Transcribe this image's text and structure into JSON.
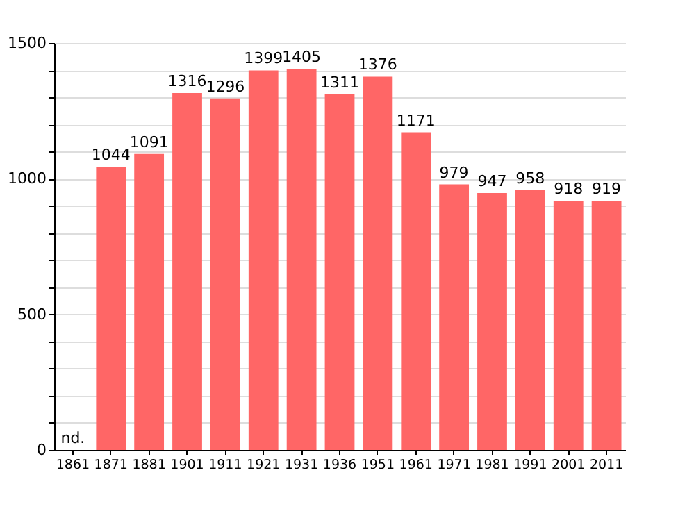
{
  "chart_data": {
    "type": "bar",
    "categories": [
      "1861",
      "1871",
      "1881",
      "1901",
      "1911",
      "1921",
      "1931",
      "1936",
      "1951",
      "1961",
      "1971",
      "1981",
      "1991",
      "2001",
      "2011"
    ],
    "values": [
      null,
      1044,
      1091,
      1316,
      1296,
      1399,
      1405,
      1311,
      1376,
      1171,
      979,
      947,
      958,
      918,
      919
    ],
    "value_labels": [
      "nd.",
      "1044",
      "1091",
      "1316",
      "1296",
      "1399",
      "1405",
      "1311",
      "1376",
      "1171",
      "979",
      "947",
      "958",
      "918",
      "919"
    ],
    "color": "#ff6666",
    "ylim": [
      0,
      1500
    ],
    "yticks": [
      0,
      {
        "value": 100,
        "label": null
      },
      {
        "value": 200,
        "label": null
      },
      {
        "value": 300,
        "label": null
      },
      {
        "value": 400,
        "label": null
      },
      500,
      {
        "value": 600,
        "label": null
      },
      {
        "value": 700,
        "label": null
      },
      {
        "value": 800,
        "label": null
      },
      {
        "value": 900,
        "label": null
      },
      1000,
      {
        "value": 1100,
        "label": null
      },
      {
        "value": 1200,
        "label": null
      },
      {
        "value": 1300,
        "label": null
      },
      {
        "value": 1400,
        "label": null
      },
      1500
    ],
    "grid": true
  }
}
